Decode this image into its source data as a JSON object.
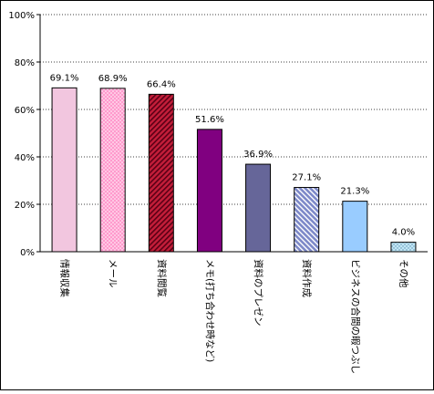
{
  "chart_data": {
    "type": "bar",
    "categories": [
      "情報収集",
      "メール",
      "資料閲覧",
      "メモ(打ち合わせ時など)",
      "資料のプレゼン",
      "資料作成",
      "ビジネスの合間の暇つぶし",
      "その他"
    ],
    "values": [
      69.1,
      68.9,
      66.4,
      51.6,
      36.9,
      27.1,
      21.3,
      4.0
    ],
    "value_labels": [
      "69.1%",
      "68.9%",
      "66.4%",
      "51.6%",
      "36.9%",
      "27.1%",
      "21.3%",
      "4.0%"
    ],
    "y_ticks": [
      0,
      20,
      40,
      60,
      80,
      100
    ],
    "y_tick_labels": [
      "0%",
      "20%",
      "40%",
      "60%",
      "80%",
      "100%"
    ],
    "ylim": [
      0,
      100
    ],
    "grid": "horizontal dotted",
    "title": "",
    "xlabel": "",
    "ylabel": "",
    "bar_styles": [
      {
        "fill": "#f2c6df",
        "pattern": "none"
      },
      {
        "fill": "#ff9acd",
        "pattern": "dots",
        "pattern_color": "#ffffff"
      },
      {
        "fill": "#c41e3a",
        "pattern": "diagonal",
        "pattern_color": "#5a0015"
      },
      {
        "fill": "#800080",
        "pattern": "none"
      },
      {
        "fill": "#666699",
        "pattern": "none"
      },
      {
        "fill": "#7c88c8",
        "pattern": "diagonal",
        "pattern_color": "#ffffff"
      },
      {
        "fill": "#99ccff",
        "pattern": "none"
      },
      {
        "fill": "#c2e6f5",
        "pattern": "dots",
        "pattern_color": "#5a8fb0"
      }
    ]
  }
}
